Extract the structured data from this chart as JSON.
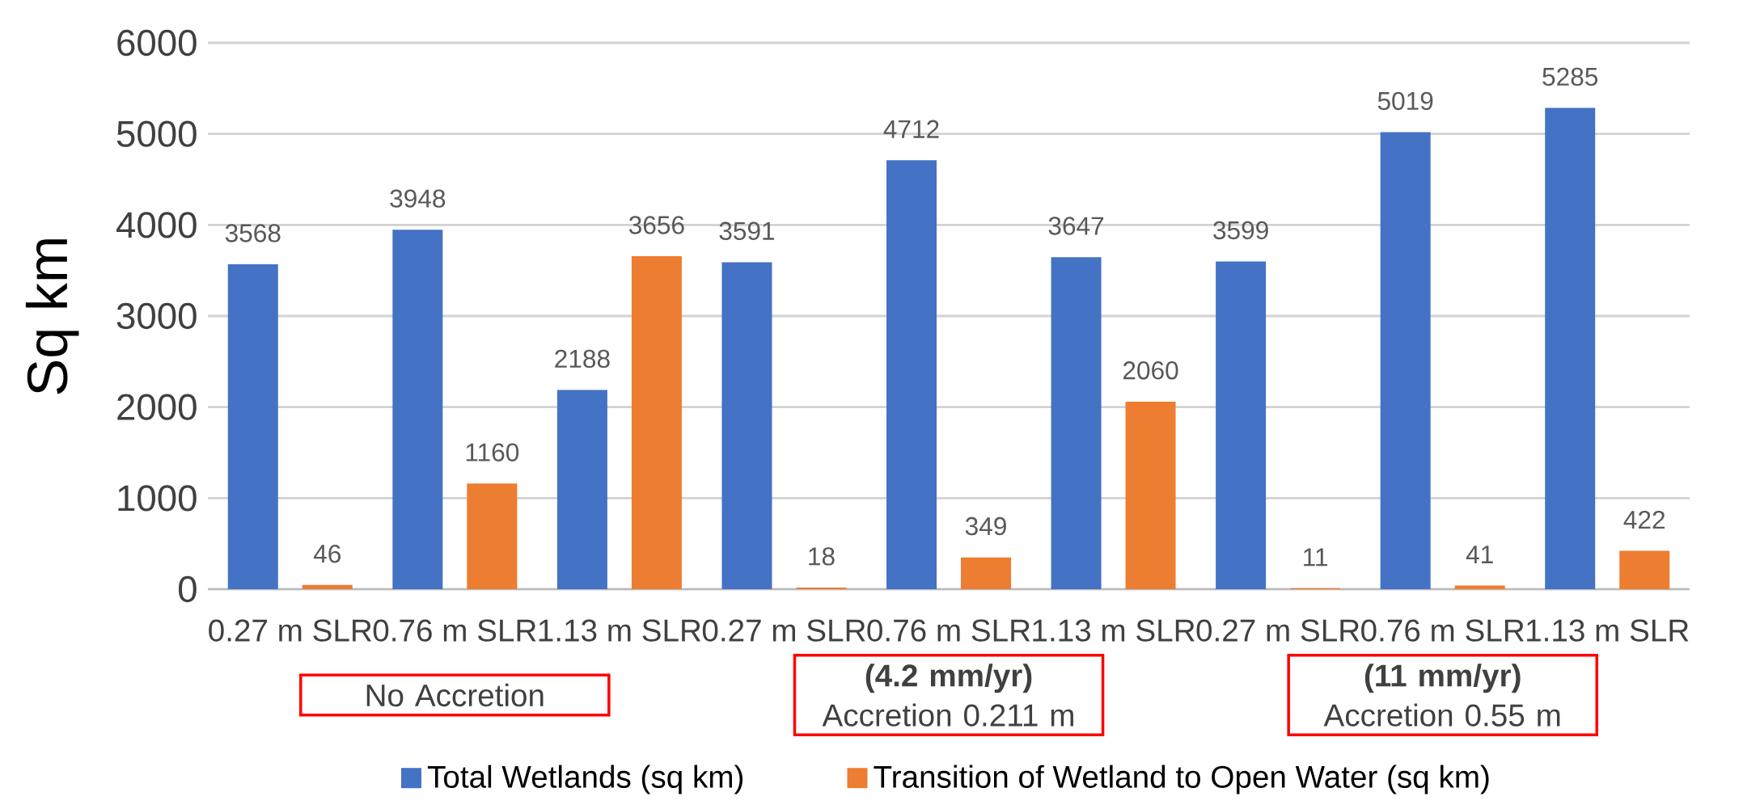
{
  "chart_data": {
    "type": "bar",
    "ylabel": "Sq km",
    "categories": [
      "0.27 m SLR",
      "0.76 m SLR",
      "1.13 m SLR",
      "0.27 m SLR",
      "0.76 m SLR",
      "1.13 m SLR",
      "0.27 m SLR",
      "0.76 m SLR",
      "1.13 m SLR"
    ],
    "series": [
      {
        "name": "Total Wetlands (sq km)",
        "color": "#4472c4",
        "values": [
          3568,
          3948,
          2188,
          3591,
          4712,
          3647,
          3599,
          5019,
          5285
        ]
      },
      {
        "name": "Transition of Wetland to Open Water (sq km)",
        "color": "#ed7d31",
        "values": [
          46,
          1160,
          3656,
          18,
          349,
          2060,
          11,
          41,
          422
        ]
      }
    ],
    "ylim": [
      0,
      6000
    ],
    "yticks": [
      0,
      1000,
      2000,
      3000,
      4000,
      5000,
      6000
    ],
    "grid": "y",
    "legend": "bottom",
    "data_labels": true,
    "annotations": [
      "No Accretion",
      "**(4.2 mm/yr)** Accretion 0.211 m",
      "**(11 mm/yr)** Accretion 0.55 m"
    ]
  }
}
